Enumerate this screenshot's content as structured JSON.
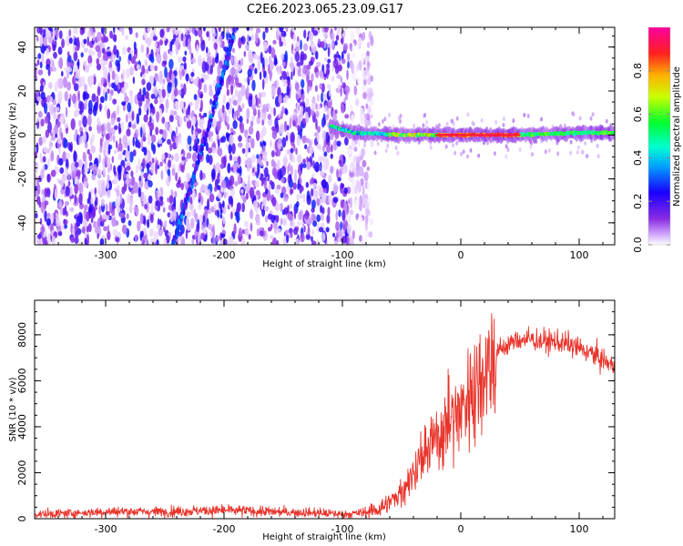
{
  "page_title": "C2E6.2023.065.23.09.G17",
  "colors": {
    "snr_line": "#e8332a",
    "frame": "#000000",
    "background": "#ffffff"
  },
  "chart_data": [
    {
      "type": "heatmap",
      "xlabel": "Height of straight line (km)",
      "ylabel": "Frequency (Hz)",
      "xlim": [
        -360,
        130
      ],
      "ylim": [
        -50,
        49
      ],
      "x_ticks": [
        -300,
        -200,
        -100,
        0,
        100
      ],
      "y_ticks": [
        -40,
        -20,
        0,
        20,
        40
      ],
      "colorbar": {
        "label": "Normalized spectral amplitude",
        "range": [
          0,
          1
        ],
        "ticks": [
          0.0,
          0.2,
          0.4,
          0.6,
          0.8
        ],
        "colormap": "rainbow (white → violet → blue → cyan → green → yellow → orange → red → magenta)"
      },
      "features": [
        {
          "name": "carrier",
          "points": [
            [
              -110,
              4
            ],
            [
              -90,
              1
            ],
            [
              -50,
              0
            ],
            [
              0,
              0
            ],
            [
              50,
              0
            ],
            [
              100,
              1
            ],
            [
              130,
              1
            ]
          ],
          "peak_amplitude": 0.9,
          "peak_range": [
            -20,
            50
          ]
        },
        {
          "name": "streak",
          "points": [
            [
              -243,
              -50
            ],
            [
              -215,
              0
            ],
            [
              -190,
              49
            ]
          ]
        }
      ],
      "noise_region": [
        -360,
        -85
      ]
    },
    {
      "type": "line",
      "xlabel": "Height of straight line (km)",
      "ylabel": "SNR (10 * v/v)",
      "xlim": [
        -360,
        130
      ],
      "ylim": [
        0,
        9500
      ],
      "x_ticks": [
        -300,
        -200,
        -100,
        0,
        100
      ],
      "y_ticks": [
        0,
        2000,
        4000,
        6000,
        8000
      ],
      "series": [
        {
          "x": [
            -360,
            -340,
            -320,
            -300,
            -280,
            -260,
            -240,
            -220,
            -200,
            -180,
            -160,
            -140,
            -120,
            -100,
            -90,
            -80,
            -70,
            -60,
            -50,
            -40,
            -30,
            -20,
            -10,
            0,
            10,
            20,
            30,
            40,
            50,
            60,
            70,
            80,
            90,
            100,
            110,
            120,
            130
          ],
          "y": [
            200,
            220,
            260,
            300,
            320,
            300,
            320,
            350,
            360,
            340,
            300,
            280,
            250,
            200,
            220,
            300,
            400,
            700,
            1200,
            2000,
            2800,
            3600,
            4200,
            4800,
            5600,
            6500,
            7200,
            7600,
            7800,
            7800,
            7700,
            7700,
            7600,
            7400,
            7200,
            6900,
            6600
          ]
        }
      ]
    }
  ]
}
